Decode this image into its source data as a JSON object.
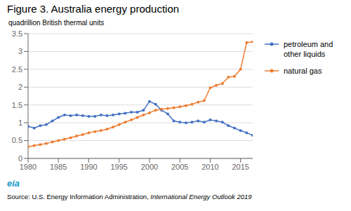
{
  "chart_data": {
    "type": "line",
    "title": "Figure 3. Australia energy production",
    "ylabel": "quadrillion British thermal units",
    "annotations": [
      "eia",
      "Source: U.S. Energy Information Administration, ",
      "International Energy Outlook 2019"
    ],
    "x": [
      1980,
      1981,
      1982,
      1983,
      1984,
      1985,
      1986,
      1987,
      1988,
      1989,
      1990,
      1991,
      1992,
      1993,
      1994,
      1995,
      1996,
      1997,
      1998,
      1999,
      2000,
      2001,
      2002,
      2003,
      2004,
      2005,
      2006,
      2007,
      2008,
      2009,
      2010,
      2011,
      2012,
      2013,
      2014,
      2015,
      2016,
      2017
    ],
    "series": [
      {
        "name": "petroleum and\nother liquids",
        "color": "#4472c4",
        "marker": "circle",
        "values": [
          0.9,
          0.85,
          0.92,
          0.95,
          1.05,
          1.15,
          1.22,
          1.2,
          1.22,
          1.2,
          1.18,
          1.18,
          1.22,
          1.2,
          1.22,
          1.25,
          1.27,
          1.3,
          1.3,
          1.35,
          1.6,
          1.52,
          1.35,
          1.25,
          1.05,
          1.02,
          1.0,
          1.02,
          1.05,
          1.02,
          1.08,
          1.05,
          1.02,
          0.92,
          0.85,
          0.78,
          0.72,
          0.65
        ]
      },
      {
        "name": "natural gas",
        "color": "#ed7d31",
        "marker": "circle",
        "values": [
          0.33,
          0.36,
          0.39,
          0.42,
          0.46,
          0.5,
          0.54,
          0.58,
          0.63,
          0.67,
          0.72,
          0.75,
          0.78,
          0.82,
          0.88,
          0.95,
          1.02,
          1.08,
          1.15,
          1.22,
          1.28,
          1.35,
          1.38,
          1.4,
          1.42,
          1.45,
          1.48,
          1.52,
          1.58,
          1.62,
          1.98,
          2.05,
          2.1,
          2.28,
          2.3,
          2.5,
          3.25,
          3.27
        ]
      }
    ],
    "xlim": [
      1980,
      2017
    ],
    "xticks": [
      1980,
      1985,
      1990,
      1995,
      2000,
      2005,
      2010,
      2015
    ],
    "ylim": [
      0,
      3.5
    ],
    "yticks": [
      0,
      0.5,
      1,
      1.5,
      2,
      2.5,
      3,
      3.5
    ],
    "grid": true,
    "legend": "right"
  }
}
